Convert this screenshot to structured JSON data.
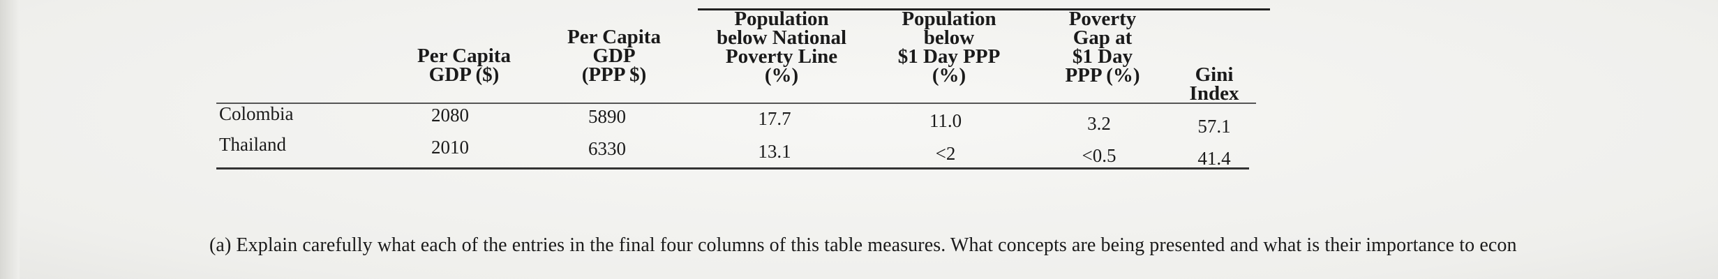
{
  "table": {
    "columns": [
      {
        "label": "Per Capita\nGDP ($)"
      },
      {
        "label": "Per Capita\nGDP\n(PPP $)"
      },
      {
        "label": "Population\nbelow National\nPoverty Line\n(%)"
      },
      {
        "label": "Population\nbelow\n$1 Day PPP\n(%)"
      },
      {
        "label": "Poverty\nGap at\n$1 Day\nPPP (%)"
      },
      {
        "label": "Gini\nIndex"
      }
    ],
    "rows": [
      {
        "country": "Colombia",
        "values": [
          "2080",
          "5890",
          "17.7",
          "11.0",
          "3.2",
          "57.1"
        ]
      },
      {
        "country": "Thailand",
        "values": [
          "2010",
          "6330",
          "13.1",
          "<2",
          "<0.5",
          "41.4"
        ]
      }
    ]
  },
  "question": {
    "text": "(a)  Explain carefully what each of the entries in the final four columns of this table measures. What concepts are being presented and what is their importance to econ"
  }
}
